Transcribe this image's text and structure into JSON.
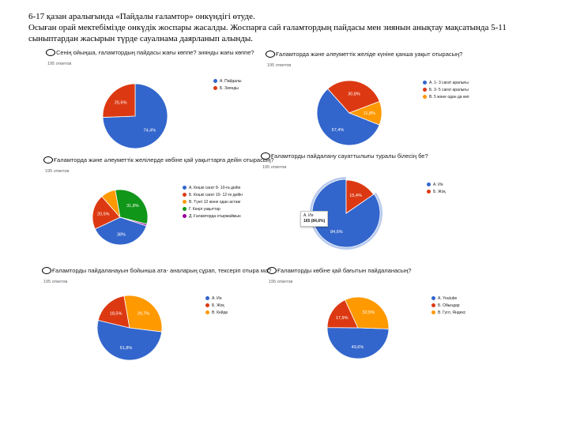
{
  "intro": {
    "line1": "6-17 қазан  аралығында  «Пайдалы ғаламтор» онкүндігі өтуде.",
    "line2": " Осыған орай мектебімізде онкүдік жоспары жасалды. Жоспарға сай  ғаламтордың пайдасы мен зиянын анықтау мақсатында 5-11 сыныптардан жасырын түрде сауалнама даярланып алынды."
  },
  "chart_data": [
    {
      "type": "pie",
      "title": "Сенің ойыңша, ғаламтордың пайдасы жағы көппе? зиянды жағы көппе?",
      "responses": "195 ответов",
      "slices": [
        {
          "label": "А. Пайдалы",
          "value": 74.4,
          "display": "74,4%",
          "color": "#3366cc"
        },
        {
          "label": "Б. Зиянды",
          "value": 25.6,
          "display": "25,6%",
          "color": "#dc3912"
        }
      ]
    },
    {
      "type": "pie",
      "title": "Ғаламторда және әлеуметтік желіде күніне қанша уақыт отырасың?",
      "responses": "195 ответов",
      "slices": [
        {
          "label": "А. 1- 3 сағат аралығы",
          "value": 57.4,
          "display": "57,4%",
          "color": "#3366cc"
        },
        {
          "label": "Б. 3- 5 сағат аралығы",
          "value": 30.8,
          "display": "30,8%",
          "color": "#dc3912"
        },
        {
          "label": "В. 5 және одан да көп",
          "value": 11.8,
          "display": "11,8%",
          "color": "#ff9900"
        }
      ]
    },
    {
      "type": "pie",
      "title": "Ғаламторда және әлеуметтік желілерде көбіне қай уақыттарға дейін отырасың?",
      "responses": "195 ответов",
      "slices": [
        {
          "label": "А. Кешкі сағат 8- 10-ға дейін",
          "value": 38,
          "display": "38%",
          "color": "#3366cc"
        },
        {
          "label": "Б. Кешкі сағат 10- 12-ге дейін",
          "value": 20.5,
          "display": "20,5%",
          "color": "#dc3912"
        },
        {
          "label": "В. Түнгі 12 және одан астам",
          "value": 8.7,
          "display": "",
          "color": "#ff9900"
        },
        {
          "label": "Г. Көңіл уақыттар",
          "value": 31.8,
          "display": "31,8%",
          "color": "#109618"
        },
        {
          "label": "Д. Ғаламторда отырмаймын",
          "value": 1.0,
          "display": "",
          "color": "#990099"
        }
      ]
    },
    {
      "type": "pie",
      "title": "Ғаламторды пайдалану сауаттылығы туралы білесің бе?",
      "responses": "195 ответов",
      "slices": [
        {
          "label": "А. Иә",
          "value": 84.6,
          "display": "84,6%",
          "color": "#3366cc"
        },
        {
          "label": "Б. Жоқ",
          "value": 15.4,
          "display": "15,4%",
          "color": "#dc3912"
        }
      ],
      "tooltip": {
        "title": "А. Иә",
        "value": "165 (84,6%)"
      }
    },
    {
      "type": "pie",
      "title": "Ғаламторды пайдаланауын бойынша ата- аналарың сұрап, тексеріп отыра ма?",
      "responses": "195 ответов",
      "slices": [
        {
          "label": "А. Иә",
          "value": 51.8,
          "display": "51,8%",
          "color": "#3366cc"
        },
        {
          "label": "Б. Жоқ",
          "value": 18.5,
          "display": "18,5%",
          "color": "#dc3912"
        },
        {
          "label": "В. Кейде",
          "value": 29.7,
          "display": "29,7%",
          "color": "#ff9900"
        }
      ]
    },
    {
      "type": "pie",
      "title": "Ғаламторды көбіне қай бағытын пайдаланасың?",
      "responses": "195 ответов",
      "slices": [
        {
          "label": "А. Youtube",
          "value": 49.6,
          "display": "49,6%",
          "color": "#3366cc"
        },
        {
          "label": "Б. Ойындар",
          "value": 17.9,
          "display": "17,9%",
          "color": "#dc3912"
        },
        {
          "label": "В. Гугл, Яндекс",
          "value": 32.5,
          "display": "32,5%",
          "color": "#ff9900"
        }
      ]
    }
  ]
}
